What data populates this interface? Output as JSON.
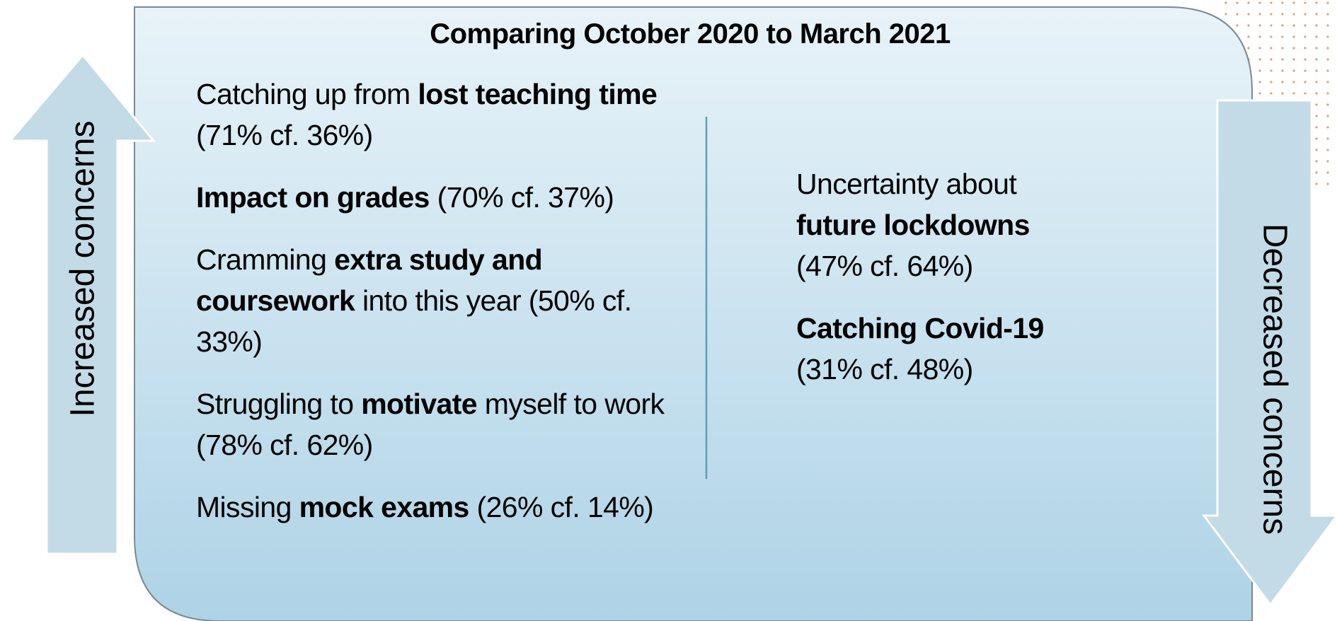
{
  "title": "Comparing October 2020 to March 2021",
  "increased": {
    "label": "Increased concerns",
    "items": [
      [
        {
          "text": "Catching up from ",
          "bold": false
        },
        {
          "text": "lost teaching time",
          "bold": true
        },
        {
          "text": " (71% cf. 36%)",
          "bold": false
        }
      ],
      [
        {
          "text": "Impact on grades",
          "bold": true
        },
        {
          "text": " (70% cf. 37%)",
          "bold": false
        }
      ],
      [
        {
          "text": "Cramming ",
          "bold": false
        },
        {
          "text": "extra study and coursework",
          "bold": true
        },
        {
          "text": " into this year (50% cf. 33%)",
          "bold": false
        }
      ],
      [
        {
          "text": "Struggling to ",
          "bold": false
        },
        {
          "text": "motivate",
          "bold": true
        },
        {
          "text": " myself to work (78% cf. 62%)",
          "bold": false
        }
      ],
      [
        {
          "text": "Missing ",
          "bold": false
        },
        {
          "text": "mock exams",
          "bold": true
        },
        {
          "text": " (26% cf. 14%)",
          "bold": false
        }
      ]
    ]
  },
  "decreased": {
    "label": "Decreased concerns",
    "items": [
      [
        {
          "text": "Uncertainty about ",
          "bold": false
        },
        {
          "text": "future lockdowns",
          "bold": true
        },
        {
          "text": " (47% cf. 64%)",
          "bold": false
        }
      ],
      [
        {
          "text": "Catching Covid-19",
          "bold": true
        },
        {
          "text": " (31% cf. 48%)",
          "bold": false
        }
      ]
    ]
  }
}
